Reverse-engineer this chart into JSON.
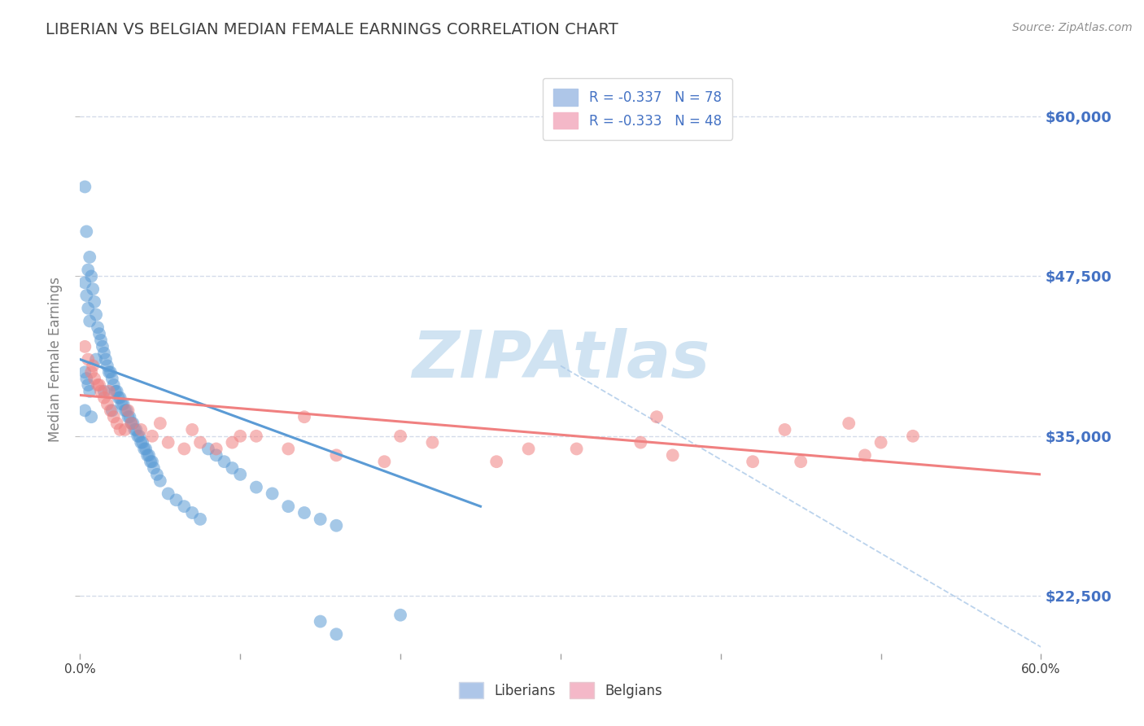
{
  "title": "LIBERIAN VS BELGIAN MEDIAN FEMALE EARNINGS CORRELATION CHART",
  "source_text": "Source: ZipAtlas.com",
  "ylabel": "Median Female Earnings",
  "xlim": [
    0.0,
    0.6
  ],
  "ylim": [
    18000,
    64000
  ],
  "yticks": [
    22500,
    35000,
    47500,
    60000
  ],
  "ytick_labels": [
    "$22,500",
    "$35,000",
    "$47,500",
    "$60,000"
  ],
  "legend_entries": [
    {
      "label": "R = -0.337   N = 78",
      "color": "#aec6e8"
    },
    {
      "label": "R = -0.333   N = 48",
      "color": "#f4b8c8"
    }
  ],
  "liberians_x": [
    0.003,
    0.004,
    0.005,
    0.006,
    0.007,
    0.008,
    0.009,
    0.01,
    0.011,
    0.012,
    0.013,
    0.014,
    0.015,
    0.016,
    0.017,
    0.018,
    0.019,
    0.02,
    0.021,
    0.022,
    0.023,
    0.024,
    0.025,
    0.026,
    0.027,
    0.028,
    0.029,
    0.03,
    0.031,
    0.032,
    0.033,
    0.034,
    0.035,
    0.036,
    0.037,
    0.038,
    0.039,
    0.04,
    0.041,
    0.042,
    0.043,
    0.044,
    0.045,
    0.046,
    0.048,
    0.05,
    0.055,
    0.06,
    0.065,
    0.07,
    0.075,
    0.08,
    0.085,
    0.09,
    0.095,
    0.1,
    0.11,
    0.12,
    0.13,
    0.14,
    0.15,
    0.16,
    0.003,
    0.004,
    0.005,
    0.006,
    0.003,
    0.004,
    0.005,
    0.006,
    0.003,
    0.007,
    0.01,
    0.015,
    0.02,
    0.15,
    0.16,
    0.2
  ],
  "liberians_y": [
    54500,
    51000,
    48000,
    49000,
    47500,
    46500,
    45500,
    44500,
    43500,
    43000,
    42500,
    42000,
    41500,
    41000,
    40500,
    40000,
    40000,
    39500,
    39000,
    38500,
    38500,
    38000,
    38000,
    37500,
    37500,
    37000,
    37000,
    36500,
    36500,
    36000,
    36000,
    35500,
    35500,
    35000,
    35000,
    34500,
    34500,
    34000,
    34000,
    33500,
    33500,
    33000,
    33000,
    32500,
    32000,
    31500,
    30500,
    30000,
    29500,
    29000,
    28500,
    34000,
    33500,
    33000,
    32500,
    32000,
    31000,
    30500,
    29500,
    29000,
    28500,
    28000,
    47000,
    46000,
    45000,
    44000,
    40000,
    39500,
    39000,
    38500,
    37000,
    36500,
    41000,
    38500,
    37000,
    20500,
    19500,
    21000
  ],
  "belgians_x": [
    0.003,
    0.005,
    0.007,
    0.009,
    0.011,
    0.013,
    0.015,
    0.017,
    0.019,
    0.021,
    0.023,
    0.025,
    0.028,
    0.032,
    0.038,
    0.045,
    0.055,
    0.065,
    0.075,
    0.085,
    0.095,
    0.11,
    0.13,
    0.16,
    0.19,
    0.22,
    0.26,
    0.31,
    0.37,
    0.42,
    0.008,
    0.012,
    0.018,
    0.03,
    0.05,
    0.07,
    0.1,
    0.14,
    0.2,
    0.28,
    0.35,
    0.45,
    0.36,
    0.44,
    0.48,
    0.5,
    0.49,
    0.52
  ],
  "belgians_y": [
    42000,
    41000,
    40000,
    39500,
    39000,
    38500,
    38000,
    37500,
    37000,
    36500,
    36000,
    35500,
    35500,
    36000,
    35500,
    35000,
    34500,
    34000,
    34500,
    34000,
    34500,
    35000,
    34000,
    33500,
    33000,
    34500,
    33000,
    34000,
    33500,
    33000,
    40500,
    39000,
    38500,
    37000,
    36000,
    35500,
    35000,
    36500,
    35000,
    34000,
    34500,
    33000,
    36500,
    35500,
    36000,
    34500,
    33500,
    35000
  ],
  "liberian_line_x": [
    0.0,
    0.25
  ],
  "liberian_line_y": [
    41000,
    29500
  ],
  "belgian_line_x": [
    0.0,
    0.6
  ],
  "belgian_line_y": [
    38200,
    32000
  ],
  "dash_line_x": [
    0.3,
    0.6
  ],
  "dash_line_y": [
    40500,
    18500
  ],
  "watermark": "ZIPAtlas",
  "watermark_color": "#c8dff0",
  "background_color": "#ffffff",
  "grid_color": "#d0d8e8",
  "liberian_color": "#5b9bd5",
  "belgian_color": "#f08080",
  "liberian_alpha": 0.55,
  "belgian_alpha": 0.55,
  "title_color": "#404040",
  "axis_label_color": "#808080",
  "tick_color_right": "#4472c4",
  "tick_color_x": "#404040"
}
